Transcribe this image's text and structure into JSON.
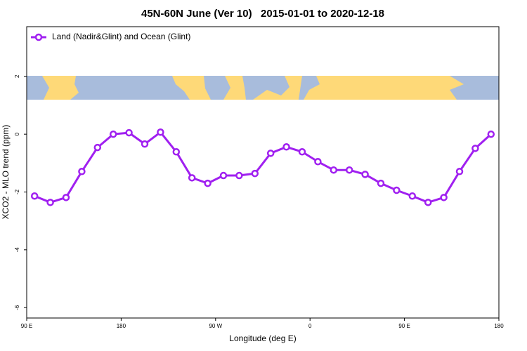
{
  "chart_data": {
    "type": "line",
    "title": "45N-60N June (Ver 10)   2015-01-01 to 2020-12-18",
    "x_label": "Longitude (deg E)",
    "y_label": "XCO2 - MLO trend (ppm)",
    "x": [
      97.5,
      112.5,
      127.5,
      142.5,
      157.5,
      172.5,
      187.5,
      202.5,
      217.5,
      232.5,
      247.5,
      262.5,
      277.5,
      292.5,
      307.5,
      322.5,
      337.5,
      352.5,
      367.5,
      382.5,
      397.5,
      412.5,
      427.5,
      442.5,
      457.5,
      472.5,
      487.5,
      502.5,
      517.5,
      532.5
    ],
    "series": [
      {
        "name": "Land (Nadir&Glint) and Ocean (Glint)",
        "color": "#a020f0",
        "values": [
          -2.14,
          -2.36,
          -2.19,
          -1.29,
          -0.46,
          0.0,
          0.05,
          -0.34,
          0.07,
          -0.61,
          -1.51,
          -1.7,
          -1.43,
          -1.43,
          -1.36,
          -0.66,
          -0.44,
          -0.61,
          -0.95,
          -1.24,
          -1.24,
          -1.39,
          -1.7,
          -1.94,
          -2.14,
          -2.36,
          -2.19,
          -1.29,
          -0.49,
          0.0
        ]
      }
    ],
    "xlim": [
      90,
      540
    ],
    "xticks": [
      {
        "value": 90,
        "label": "90 E"
      },
      {
        "value": 180,
        "label": "180"
      },
      {
        "value": 270,
        "label": "90 W"
      },
      {
        "value": 360,
        "label": "0"
      },
      {
        "value": 450,
        "label": "90 E"
      },
      {
        "value": 540,
        "label": "180"
      }
    ],
    "ylim": [
      -6.36,
      3.72
    ],
    "yticks": [
      -6,
      -4,
      -2,
      0,
      2
    ],
    "legend": "top-left"
  }
}
